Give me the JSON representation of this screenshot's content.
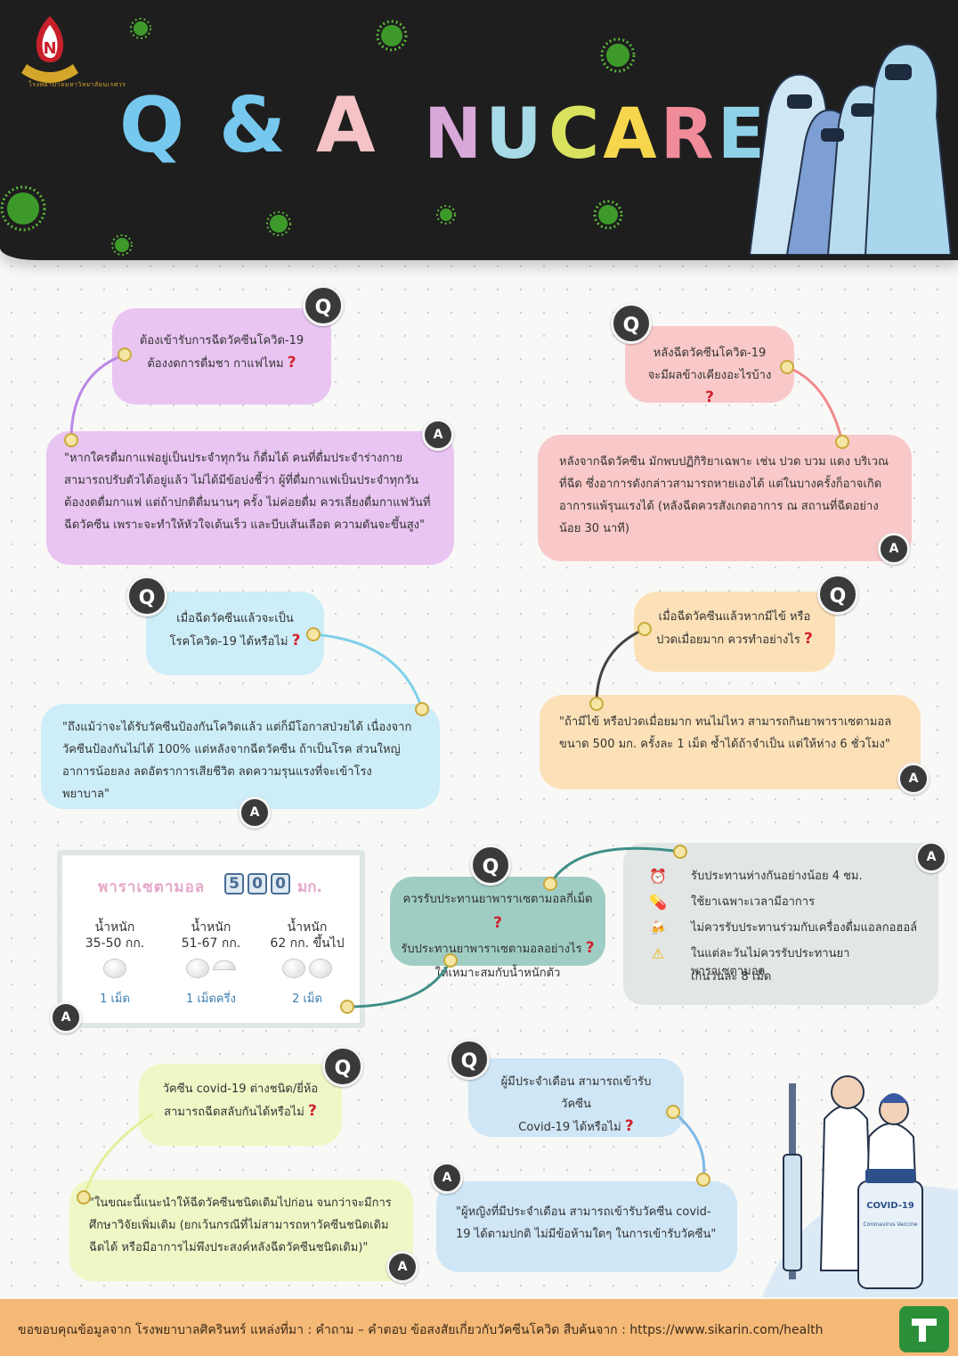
{
  "header": {
    "logo_alt_text": "โรงพยาบาลมหาวิทยาลัยนเรศวร",
    "title_q": "Q",
    "title_amp": "&",
    "title_a": "A",
    "title_nu": "NU",
    "title_care": "CARE"
  },
  "qa": [
    {
      "q_label": "Q",
      "a_label": "A",
      "question_line1": "ต้องเข้ารับการฉีดวัคซีนโควิด-19",
      "question_line2": "ต้องงดการดื่มชา กาแฟไหม",
      "answer": "\"หากใครดื่มกาแฟอยู่เป็นประจำทุกวัน ก็ดื่มได้ คนที่ดื่มประจำร่างกายสามารถปรับตัวได้อยู่แล้ว ไม่ได้มีข้อบ่งชี้ว่า ผู้ที่ดื่มกาแฟเป็นประจำทุกวันต้องงดดื่มกาแฟ แต่ถ้าปกติดื่มนานๆ ครั้ง ไม่ค่อยดื่ม ควรเลี่ยงดื่มกาแฟวันที่ฉีดวัคซีน เพราะจะทำให้หัวใจเต้นเร็ว และบีบเส้นเลือด ความดันจะขึ้นสูง\""
    },
    {
      "q_label": "Q",
      "a_label": "A",
      "question_line1": "หลังฉีดวัคซีนโควิด-19",
      "question_line2": "จะมีผลข้างเคียงอะไรบ้าง",
      "answer": "หลังจากฉีดวัคซีน มักพบปฏิกิริยาเฉพาะ เช่น ปวด บวม แดง บริเวณที่ฉีด ซึ่งอาการดังกล่าวสามารถหายเองได้ แต่ในบางครั้งก็อาจเกิดอาการแพ้รุนแรงได้ (หลังฉีดควรสังเกตอาการ ณ สถานที่ฉีดอย่างน้อย 30 นาที)"
    },
    {
      "q_label": "Q",
      "a_label": "A",
      "question_line1": "เมื่อฉีดวัคซีนแล้วจะเป็น",
      "question_line2": "โรคโควิด-19 ได้หรือไม่",
      "answer": "\"ถึงแม้ว่าจะได้รับวัคซีนป้องกันโควิดแล้ว แต่ก็มีโอกาสป่วยได้ เนื่องจากวัคซีนป้องกันไม่ได้ 100% แต่หลังจากฉีดวัคซีน ถ้าเป็นโรค ส่วนใหญ่อาการน้อยลง ลดอัตราการเสียชีวิต ลดความรุนแรงที่จะเข้าโรงพยาบาล\""
    },
    {
      "q_label": "Q",
      "a_label": "A",
      "question_line1": "เมื่อฉีดวัคซีนแล้วหากมีไข้ หรือ",
      "question_line2": "ปวดเมื่อยมาก ควรทำอย่างไร",
      "answer": "\"ถ้ามีไข้ หรือปวดเมื่อยมาก ทนไม่ไหว สามารถกินยาพาราเซตามอล ขนาด 500 มก. ครั้งละ 1 เม็ด ซ้ำได้ถ้าจำเป็น แต่ให้ห่าง 6 ชั่วโมง\""
    },
    {
      "q_label": "Q",
      "a_label": "A",
      "question_line1": "ควรรับประทานยาพาราเซตามอลกี่เม็ด",
      "question_line2": "รับประทานยาพาราเซตามอลอย่างไร",
      "question_line3": "ให้เหมาะสมกับน้ำหนักตัว"
    },
    {
      "q_label": "Q",
      "a_label": "A",
      "question_line1": "วัคซีน covid-19 ต่างชนิด/ยี่ห้อ",
      "question_line2": "สามารถฉีดสลับกันได้หรือไม่",
      "answer": "\"ในขณะนี้แนะนำให้ฉีดวัคซีนชนิดเดิมไปก่อน จนกว่าจะมีการศึกษาวิจัยเพิ่มเติม (ยกเว้นกรณีที่ไม่สามารถหาวัคซีนชนิดเดิมฉีดได้ หรือมีอาการไม่พึงประสงค์หลังฉีดวัคซีนชนิดเดิม)\""
    },
    {
      "q_label": "Q",
      "a_label": "A",
      "question_line1": "ผู้มีประจำเดือน สามารถเข้ารับวัคซีน",
      "question_line2": "Covid-19 ได้หรือไม่",
      "answer": "\"ผู้หญิงที่มีประจำเดือน สามารถเข้ารับวัคซีน covid-19 ได้ตามปกติ ไม่มีข้อห้ามใดๆ ในการเข้ารับวัคซีน\""
    }
  ],
  "qmark": "?",
  "dosage": {
    "title": "พาราเซตามอล",
    "digits": [
      "5",
      "0",
      "0"
    ],
    "unit": "มก.",
    "columns": [
      {
        "label1": "น้ำหนัก",
        "label2": "35-50 กก.",
        "count": "1 เม็ด",
        "pills": 1
      },
      {
        "label1": "น้ำหนัก",
        "label2": "51-67 กก.",
        "count": "1 เม็ดครึ่ง",
        "pills": 1.5
      },
      {
        "label1": "น้ำหนัก",
        "label2": "62 กก. ขึ้นไป",
        "count": "2 เม็ด",
        "pills": 2
      }
    ],
    "a_label": "A"
  },
  "tips": [
    {
      "icon": "alarm-clock-icon",
      "glyph": "⏰",
      "text": "รับประทานห่างกันอย่างน้อย 4 ชม."
    },
    {
      "icon": "pill-icon",
      "glyph": "💊",
      "text": "ใช้ยาเฉพาะเวลามีอาการ"
    },
    {
      "icon": "beer-icon",
      "glyph": "🍻",
      "text": "ไม่ควรรับประทานร่วมกับเครื่องดื่มแอลกอฮอล์"
    },
    {
      "icon": "warning-icon",
      "glyph": "⚠",
      "text": "ในแต่ละวันไม่ควรรับประทานยาพาราเซตามอล"
    },
    {
      "icon": "",
      "glyph": "",
      "text": "เกินวันละ 8 เม็ด"
    }
  ],
  "vaccine_label": "COVID-19",
  "vaccine_sublabel": "Coronavirus Vaccine",
  "footer": {
    "text": "ขอขอบคุณข้อมูลจาก โรงพยาบาลศิครินทร์ แหล่งที่มา : คำถาม – คำตอบ ข้อสงสัยเกี่ยวกับวัคซีนโควิด สืบค้นจาก : https://www.sikarin.com/health"
  },
  "colors": {
    "header_bg": "#1e1e1e",
    "q_title": "#76c8ee",
    "a_title": "#f5c2c5",
    "nu": [
      "#d7a8d8",
      "#a7d9e6"
    ],
    "care": [
      "#d8e25e",
      "#f7d64d",
      "#f08b9a",
      "#8fd2e8"
    ],
    "purple": "#e9c5f2",
    "pink": "#f9c9c9",
    "blue": "#cdeef8",
    "orange": "#fce1b8",
    "teal": "#9fcdc4",
    "yellow": "#eef8c7",
    "sky": "#cfe6f6",
    "grey": "#e2e6e5",
    "footer": "#f5b977"
  }
}
